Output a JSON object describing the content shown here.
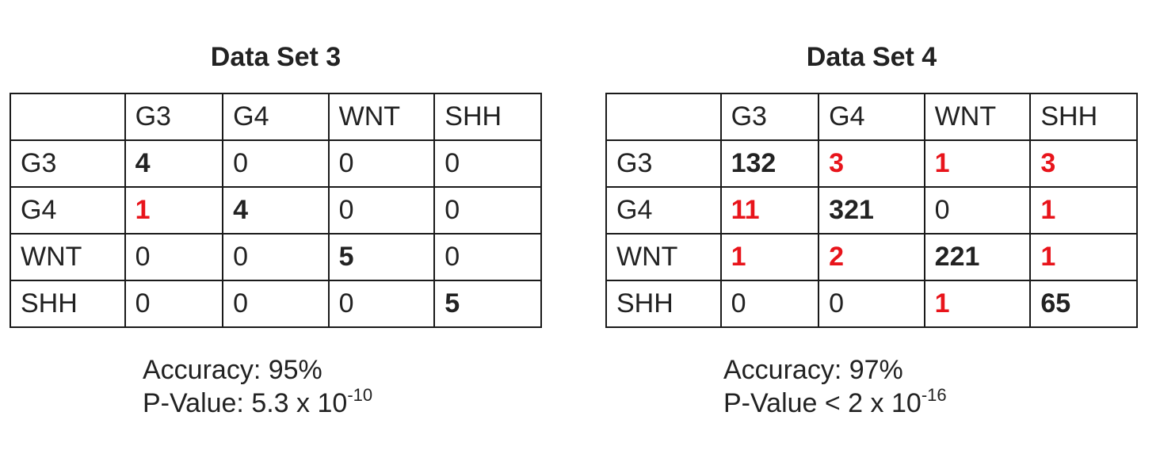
{
  "panels": [
    {
      "title": "Data Set 3",
      "header": [
        "",
        "G3",
        "G4",
        "WNT",
        "SHH"
      ],
      "rows": [
        {
          "label": "G3",
          "cells": [
            {
              "v": "4",
              "style": "bold"
            },
            {
              "v": "0",
              "style": "normal"
            },
            {
              "v": "0",
              "style": "normal"
            },
            {
              "v": "0",
              "style": "normal"
            }
          ]
        },
        {
          "label": "G4",
          "cells": [
            {
              "v": "1",
              "style": "red"
            },
            {
              "v": "4",
              "style": "bold"
            },
            {
              "v": "0",
              "style": "normal"
            },
            {
              "v": "0",
              "style": "normal"
            }
          ]
        },
        {
          "label": "WNT",
          "cells": [
            {
              "v": "0",
              "style": "normal"
            },
            {
              "v": "0",
              "style": "normal"
            },
            {
              "v": "5",
              "style": "bold"
            },
            {
              "v": "0",
              "style": "normal"
            }
          ]
        },
        {
          "label": "SHH",
          "cells": [
            {
              "v": "0",
              "style": "normal"
            },
            {
              "v": "0",
              "style": "normal"
            },
            {
              "v": "0",
              "style": "normal"
            },
            {
              "v": "5",
              "style": "bold"
            }
          ]
        }
      ],
      "accuracy": "Accuracy: 95%",
      "pvalue_prefix": "P-Value: 5.3 x 10",
      "pvalue_exp": "-10"
    },
    {
      "title": "Data Set 4",
      "header": [
        "",
        "G3",
        "G4",
        "WNT",
        "SHH"
      ],
      "rows": [
        {
          "label": "G3",
          "cells": [
            {
              "v": "132",
              "style": "bold"
            },
            {
              "v": "3",
              "style": "red"
            },
            {
              "v": "1",
              "style": "red"
            },
            {
              "v": "3",
              "style": "red"
            }
          ]
        },
        {
          "label": "G4",
          "cells": [
            {
              "v": "11",
              "style": "red"
            },
            {
              "v": "321",
              "style": "bold"
            },
            {
              "v": "0",
              "style": "normal"
            },
            {
              "v": "1",
              "style": "red"
            }
          ]
        },
        {
          "label": "WNT",
          "cells": [
            {
              "v": "1",
              "style": "red"
            },
            {
              "v": "2",
              "style": "red"
            },
            {
              "v": "221",
              "style": "bold"
            },
            {
              "v": "1",
              "style": "red"
            }
          ]
        },
        {
          "label": "SHH",
          "cells": [
            {
              "v": "0",
              "style": "normal"
            },
            {
              "v": "0",
              "style": "normal"
            },
            {
              "v": "1",
              "style": "red"
            },
            {
              "v": "65",
              "style": "bold"
            }
          ]
        }
      ],
      "accuracy": "Accuracy: 97%",
      "pvalue_prefix": "P-Value < 2 x 10",
      "pvalue_exp": "-16"
    }
  ],
  "colors": {
    "text": "#222222",
    "misclassified": "#e8141b",
    "border": "#1a1a1a"
  }
}
